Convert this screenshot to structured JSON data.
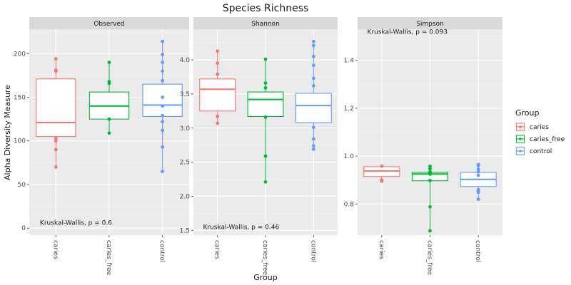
{
  "chart_data": {
    "type": "box",
    "title": "Species Richness",
    "xlabel": "Group",
    "ylabel": "Alpha Diversity Measure",
    "categories": [
      "caries",
      "caries_free",
      "control"
    ],
    "colors": {
      "caries": "#f8766d",
      "caries_free": "#00ba38",
      "control": "#619cff"
    },
    "legend": {
      "title": "Group",
      "position": "right",
      "entries": [
        "caries",
        "caries_free",
        "control"
      ]
    },
    "panels": [
      {
        "name": "Observed",
        "ylim": [
          -8,
          228
        ],
        "yticks": [
          0,
          50,
          100,
          150,
          200
        ],
        "annotation": {
          "text": "Kruskal-Wallis, p = 0.6",
          "x": 1,
          "y": 4,
          "hjust": "left"
        },
        "series": [
          {
            "name": "caries",
            "box": {
              "q1": 105,
              "median": 121,
              "q3": 171
            },
            "points": [
              194,
              181,
              180,
              103,
              100,
              90,
              70
            ]
          },
          {
            "name": "caries_free",
            "box": {
              "q1": 125,
              "median": 140,
              "q3": 156
            },
            "points": [
              190,
              168,
              166,
              125,
              109
            ]
          },
          {
            "name": "control",
            "box": {
              "q1": 128,
              "median": 141,
              "q3": 165
            },
            "points": [
              214,
              199,
              190,
              180,
              169,
              150,
              140,
              129,
              122,
              112,
              93,
              65
            ]
          }
        ]
      },
      {
        "name": "Shannon",
        "ylim": [
          1.43,
          4.45
        ],
        "yticks": [
          1.5,
          2.0,
          2.5,
          3.0,
          3.5,
          4.0
        ],
        "annotation": {
          "text": "Kruskal-Wallis, p = 0.46",
          "x": 1,
          "y": 1.52,
          "hjust": "left"
        },
        "series": [
          {
            "name": "caries",
            "box": {
              "q1": 3.25,
              "median": 3.57,
              "q3": 3.72
            },
            "points": [
              4.13,
              3.95,
              3.79,
              3.17,
              3.07
            ]
          },
          {
            "name": "caries_free",
            "box": {
              "q1": 3.17,
              "median": 3.42,
              "q3": 3.53
            },
            "points": [
              4.01,
              3.66,
              3.59,
              3.16,
              2.59,
              2.21
            ]
          },
          {
            "name": "control",
            "box": {
              "q1": 3.08,
              "median": 3.33,
              "q3": 3.51
            },
            "points": [
              4.27,
              4.21,
              4.05,
              3.92,
              3.73,
              3.62,
              3.01,
              2.84,
              2.74,
              2.69
            ]
          }
        ]
      },
      {
        "name": "Simpson",
        "ylim": [
          0.67,
          1.53
        ],
        "yticks": [
          0.8,
          1.0,
          1.2,
          1.4
        ],
        "annotation": {
          "text": "Kruskal-Wallis, p = 0.093",
          "x": 1,
          "y": 1.51,
          "hjust": "left"
        },
        "series": [
          {
            "name": "caries",
            "box": {
              "q1": 0.915,
              "median": 0.938,
              "q3": 0.956
            },
            "points": [
              0.958,
              0.9,
              0.895
            ]
          },
          {
            "name": "caries_free",
            "box": {
              "q1": 0.897,
              "median": 0.925,
              "q3": 0.932
            },
            "points": [
              0.958,
              0.948,
              0.935,
              0.93,
              0.925,
              0.898,
              0.788,
              0.688
            ]
          },
          {
            "name": "control",
            "box": {
              "q1": 0.873,
              "median": 0.903,
              "q3": 0.932
            },
            "points": [
              0.965,
              0.96,
              0.945,
              0.935,
              0.92,
              0.86,
              0.853,
              0.848,
              0.82
            ]
          }
        ]
      }
    ]
  }
}
